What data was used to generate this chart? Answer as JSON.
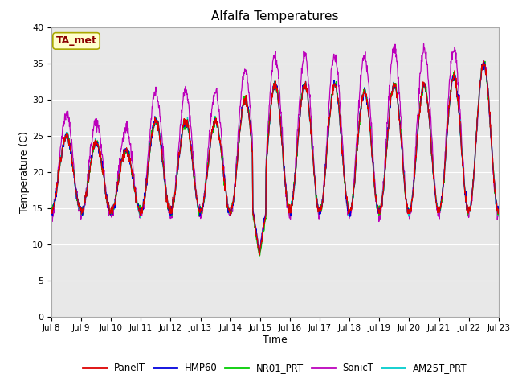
{
  "title": "Alfalfa Temperatures",
  "xlabel": "Time",
  "ylabel": "Temperature (C)",
  "annotation": "TA_met",
  "ylim": [
    0,
    40
  ],
  "yticks": [
    0,
    5,
    10,
    15,
    20,
    25,
    30,
    35,
    40
  ],
  "xtick_labels": [
    "Jul 8",
    "Jul 9",
    "Jul 10",
    "Jul 11",
    "Jul 12",
    "Jul 13",
    "Jul 14",
    "Jul 15",
    "Jul 16",
    "Jul 17",
    "Jul 18",
    "Jul 19",
    "Jul 20",
    "Jul 21",
    "Jul 22",
    "Jul 23"
  ],
  "series": [
    {
      "name": "PanelT",
      "color": "#dd0000"
    },
    {
      "name": "HMP60",
      "color": "#0000dd"
    },
    {
      "name": "NR01_PRT",
      "color": "#00cc00"
    },
    {
      "name": "SonicT",
      "color": "#bb00bb"
    },
    {
      "name": "AM25T_PRT",
      "color": "#00cccc"
    }
  ],
  "bg_color": "#e8e8e8",
  "grid_color": "#ffffff",
  "fig_facecolor": "#ffffff"
}
